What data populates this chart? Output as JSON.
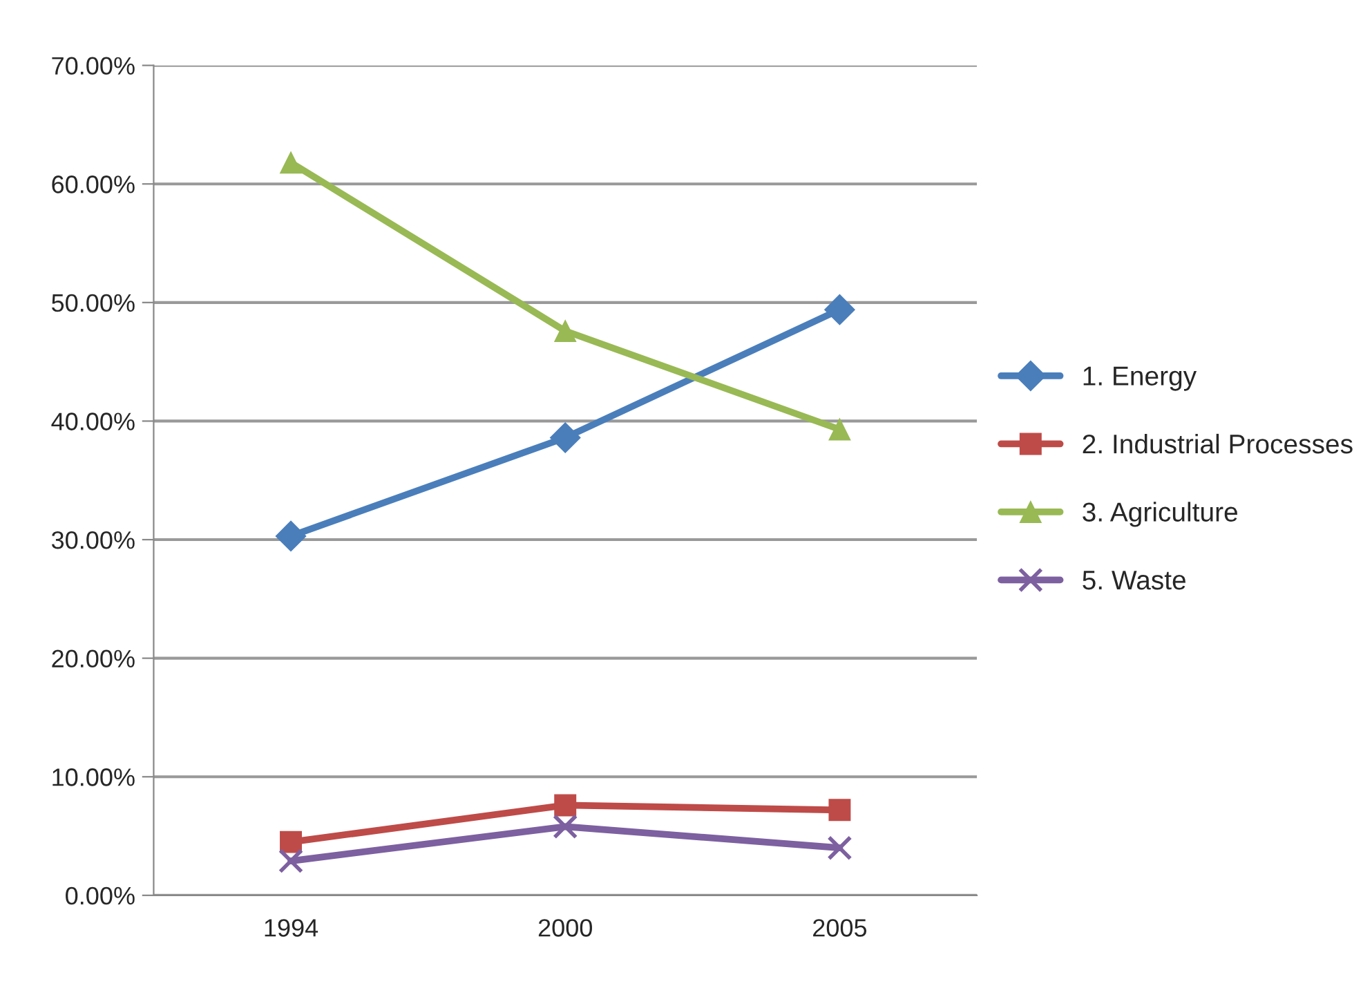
{
  "chart_data": {
    "type": "line",
    "categories": [
      "1994",
      "2000",
      "2005"
    ],
    "series": [
      {
        "name": "1. Energy",
        "color": "#4a7ebb",
        "marker": "diamond",
        "values": [
          30.3,
          38.6,
          49.4
        ]
      },
      {
        "name": "2. Industrial Processes",
        "color": "#be4b48",
        "marker": "square",
        "values": [
          4.5,
          7.6,
          7.2
        ]
      },
      {
        "name": "3. Agriculture",
        "color": "#98b954",
        "marker": "triangle",
        "values": [
          61.8,
          47.6,
          39.3
        ]
      },
      {
        "name": "5. Waste",
        "color": "#7d60a0",
        "marker": "cross",
        "values": [
          2.9,
          5.8,
          4.0
        ]
      }
    ],
    "ylim": [
      0,
      70
    ],
    "yticks": [
      {
        "value": 0,
        "label": "0.00%"
      },
      {
        "value": 10,
        "label": "10.00%"
      },
      {
        "value": 20,
        "label": "20.00%"
      },
      {
        "value": 30,
        "label": "30.00%"
      },
      {
        "value": 40,
        "label": "40.00%"
      },
      {
        "value": 50,
        "label": "50.00%"
      },
      {
        "value": 60,
        "label": "60.00%"
      },
      {
        "value": 70,
        "label": "70.00%"
      }
    ],
    "grid": "y",
    "legend": "right",
    "line_style": "solid"
  }
}
